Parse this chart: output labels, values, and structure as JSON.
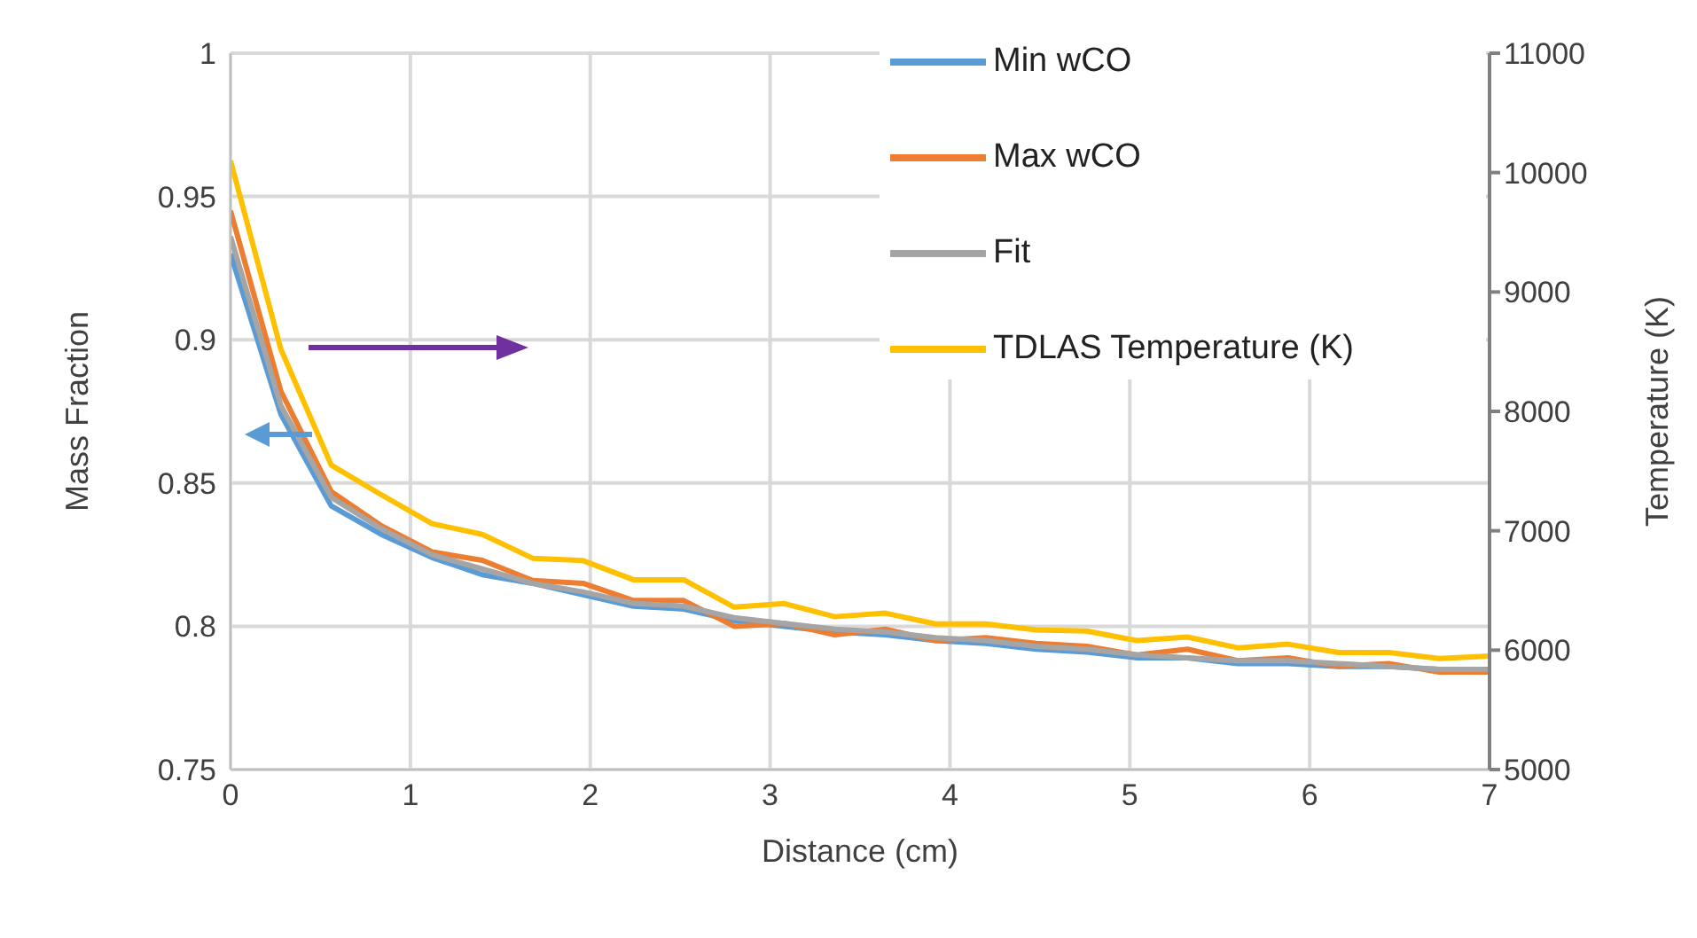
{
  "chart_data": {
    "type": "line",
    "xlabel": "Distance (cm)",
    "ylabel": "Mass Fraction",
    "y2label": "Temperature (K)",
    "x": [
      0,
      0.28,
      0.56,
      0.84,
      1.12,
      1.4,
      1.68,
      1.96,
      2.24,
      2.52,
      2.8,
      3.08,
      3.36,
      3.64,
      3.92,
      4.2,
      4.48,
      4.76,
      5.04,
      5.32,
      5.6,
      5.88,
      6.16,
      6.44,
      6.72,
      7
    ],
    "series": [
      {
        "name": "Min wCO",
        "color": "#5b9bd5",
        "values": [
          0.93,
          0.874,
          0.842,
          0.832,
          0.824,
          0.818,
          0.815,
          0.811,
          0.807,
          0.806,
          0.802,
          0.8,
          0.798,
          0.797,
          0.795,
          0.794,
          0.792,
          0.791,
          0.789,
          0.789,
          0.787,
          0.787,
          0.786,
          0.786,
          0.785,
          0.784
        ]
      },
      {
        "name": "Max wCO",
        "color": "#ed7d31",
        "values": [
          0.945,
          0.882,
          0.847,
          0.835,
          0.826,
          0.823,
          0.816,
          0.815,
          0.809,
          0.809,
          0.8,
          0.801,
          0.797,
          0.799,
          0.795,
          0.796,
          0.794,
          0.793,
          0.79,
          0.792,
          0.788,
          0.789,
          0.786,
          0.787,
          0.784,
          0.784
        ]
      },
      {
        "name": "Fit",
        "color": "#a5a5a5",
        "values": [
          0.936,
          0.877,
          0.845,
          0.834,
          0.825,
          0.82,
          0.815,
          0.812,
          0.808,
          0.807,
          0.803,
          0.801,
          0.799,
          0.798,
          0.796,
          0.795,
          0.793,
          0.792,
          0.79,
          0.789,
          0.788,
          0.788,
          0.787,
          0.786,
          0.785,
          0.785
        ]
      },
      {
        "name": "TDLAS Temperature (K)",
        "color": "#ffc000",
        "axis": "y2",
        "values": [
          10100,
          8520,
          7550,
          7300,
          7060,
          6970,
          6770,
          6750,
          6590,
          6590,
          6360,
          6390,
          6280,
          6310,
          6220,
          6220,
          6170,
          6160,
          6080,
          6110,
          6020,
          6050,
          5980,
          5980,
          5930,
          5950
        ]
      }
    ],
    "xlim": [
      0,
      7
    ],
    "xticks": [
      0,
      1,
      2,
      3,
      4,
      5,
      6,
      7
    ],
    "ylim": [
      0.75,
      1
    ],
    "yticks": [
      0.75,
      0.8,
      0.85,
      0.9,
      0.95,
      1
    ],
    "y2lim": [
      5000,
      11000
    ],
    "y2ticks": [
      5000,
      6000,
      7000,
      8000,
      9000,
      10000,
      11000
    ],
    "grid": true,
    "legend": "top right",
    "marker": "none",
    "line_style": "solid"
  }
}
